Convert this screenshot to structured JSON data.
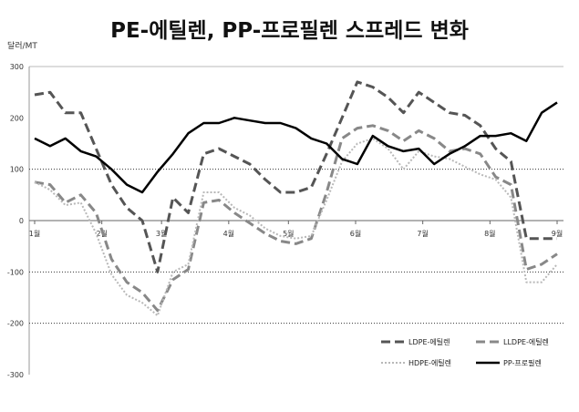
{
  "chart_data": {
    "type": "line",
    "title": "PE-에틸렌, PP-프로필렌 스프레드 변화",
    "ylabel": "달러/MT",
    "xlabel": "",
    "ylim": [
      -300,
      300
    ],
    "yticks": [
      "300",
      "200",
      "100",
      "0",
      "-100",
      "-200",
      "-300"
    ],
    "x_labels": [
      "1월",
      "2월",
      "3월",
      "4월",
      "5월",
      "6월",
      "7월",
      "8월",
      "9월"
    ],
    "x_count": 35,
    "gridlines": "dotted at 100, -100, -200; solid zero line",
    "legend_position": "bottom-right",
    "colors": {
      "LDPE-에틸렌": "#555555",
      "LLDPE-에틸렌": "#888888",
      "HDPE-에틸렌": "#b8b8b8",
      "PP-프로필렌": "#000000"
    },
    "series": [
      {
        "name": "LDPE-에틸렌",
        "style": "dashed",
        "values": [
          245,
          250,
          210,
          210,
          140,
          70,
          25,
          0,
          -100,
          45,
          15,
          130,
          140,
          125,
          110,
          80,
          55,
          55,
          65,
          130,
          200,
          270,
          260,
          240,
          210,
          250,
          230,
          210,
          205,
          185,
          140,
          115,
          -35,
          -35,
          -35
        ]
      },
      {
        "name": "LLDPE-에틸렌",
        "style": "dashed",
        "values": [
          75,
          70,
          35,
          50,
          15,
          -75,
          -120,
          -140,
          -175,
          -115,
          -95,
          35,
          40,
          15,
          -5,
          -25,
          -40,
          -45,
          -35,
          55,
          160,
          180,
          185,
          175,
          155,
          175,
          160,
          135,
          140,
          130,
          85,
          70,
          -95,
          -85,
          -65
        ]
      },
      {
        "name": "HDPE-에틸렌",
        "style": "dotted",
        "values": [
          75,
          60,
          30,
          35,
          -25,
          -105,
          -145,
          -160,
          -185,
          -100,
          -85,
          55,
          55,
          25,
          10,
          -15,
          -30,
          -35,
          -30,
          40,
          115,
          150,
          160,
          140,
          100,
          135,
          125,
          120,
          105,
          90,
          80,
          45,
          -120,
          -120,
          -85
        ]
      },
      {
        "name": "PP-프로필렌",
        "style": "solid",
        "values": [
          160,
          145,
          160,
          135,
          125,
          100,
          70,
          55,
          95,
          130,
          170,
          190,
          190,
          200,
          195,
          190,
          190,
          180,
          160,
          150,
          120,
          110,
          165,
          145,
          135,
          140,
          110,
          130,
          145,
          165,
          165,
          170,
          155,
          210,
          230
        ]
      }
    ]
  }
}
